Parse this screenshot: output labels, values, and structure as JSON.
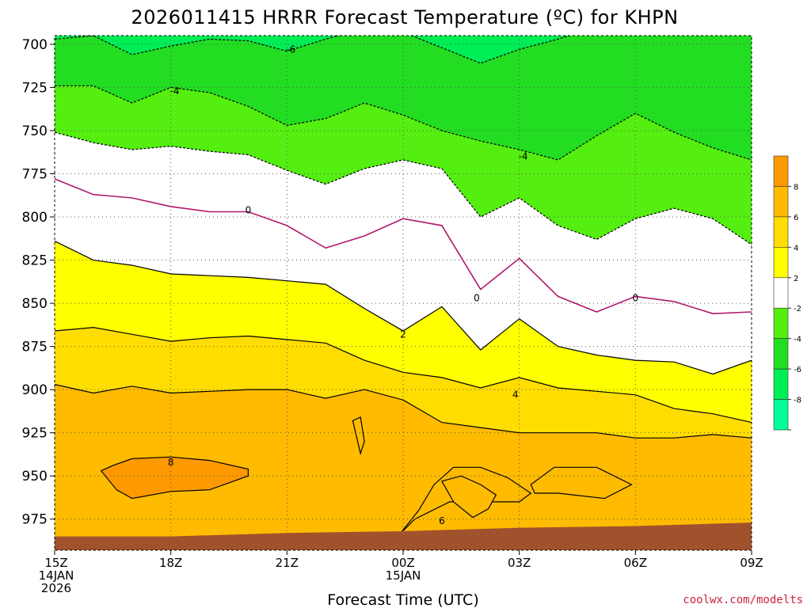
{
  "chart_data": {
    "type": "heatmap",
    "title": "2026011415 HRRR Forecast Temperature (ºC) for KHPN",
    "xlabel": "Forecast Time (UTC)",
    "ylabel": "",
    "credit": "coolwx.com/modelts",
    "x_unit": "forecast hours from 2026-01-14 15Z",
    "y_unit": "hPa",
    "xlim": [
      0,
      18
    ],
    "ylim": [
      695,
      993
    ],
    "y_inverted": true,
    "grid": true,
    "x_ticks": [
      {
        "hour": 0,
        "lines": [
          "15Z",
          "14JAN",
          "2026"
        ]
      },
      {
        "hour": 3,
        "lines": [
          "18Z"
        ]
      },
      {
        "hour": 6,
        "lines": [
          "21Z"
        ]
      },
      {
        "hour": 9,
        "lines": [
          "00Z",
          "15JAN"
        ]
      },
      {
        "hour": 12,
        "lines": [
          "03Z"
        ]
      },
      {
        "hour": 15,
        "lines": [
          "06Z"
        ]
      },
      {
        "hour": 18,
        "lines": [
          "09Z"
        ]
      }
    ],
    "y_ticks": [
      700,
      725,
      750,
      775,
      800,
      825,
      850,
      875,
      900,
      925,
      950,
      975
    ],
    "colorbar": {
      "placement": "right",
      "bins": [
        {
          "range": [
            -10,
            -8
          ],
          "color": "#00ff99",
          "label": "-8"
        },
        {
          "range": [
            -8,
            -6
          ],
          "color": "#00ee55",
          "label": "-6"
        },
        {
          "range": [
            -6,
            -4
          ],
          "color": "#22dd22",
          "label": "-4"
        },
        {
          "range": [
            -4,
            -2
          ],
          "color": "#55ee11",
          "label": "-2"
        },
        {
          "range": [
            -2,
            2
          ],
          "color": "#ffffff",
          "label": "2"
        },
        {
          "range": [
            2,
            4
          ],
          "color": "#ffff00",
          "label": "4"
        },
        {
          "range": [
            4,
            6
          ],
          "color": "#ffdd00",
          "label": "6"
        },
        {
          "range": [
            6,
            8
          ],
          "color": "#ffbb00",
          "label": "8"
        },
        {
          "range": [
            8,
            10
          ],
          "color": "#ff9900",
          "label": ""
        }
      ]
    },
    "ground": {
      "color": "#a0522d",
      "hour": [
        0,
        3,
        6,
        9,
        12,
        15,
        18
      ],
      "pressure": [
        985,
        985,
        983,
        982,
        980,
        979,
        977
      ]
    },
    "isotherms": [
      {
        "value": -6,
        "labels": [
          {
            "hour": 6.1,
            "pressure": 703
          }
        ],
        "hour": [
          0,
          1,
          2,
          3,
          4,
          5,
          6,
          7,
          8,
          9,
          10,
          11,
          12,
          13,
          14,
          15,
          16,
          17,
          18
        ],
        "pressure": [
          697,
          695,
          706,
          701,
          697,
          698,
          704,
          697,
          691,
          693,
          702,
          711,
          703,
          697,
          690,
          688,
          690,
          693,
          695
        ]
      },
      {
        "value": -4,
        "labels": [
          {
            "hour": 3.1,
            "pressure": 727
          },
          {
            "hour": 12.1,
            "pressure": 765
          }
        ],
        "hour": [
          0,
          1,
          2,
          3,
          4,
          5,
          6,
          7,
          8,
          9,
          10,
          11,
          12,
          13,
          14,
          15,
          16,
          17,
          18
        ],
        "pressure": [
          724,
          724,
          734,
          725,
          728,
          736,
          747,
          743,
          734,
          741,
          750,
          756,
          761,
          767,
          753,
          740,
          751,
          760,
          767
        ]
      },
      {
        "value": -2,
        "labels": [],
        "hour": [
          0,
          1,
          2,
          3,
          4,
          5,
          6,
          7,
          8,
          9,
          10,
          11,
          12,
          13,
          14,
          15,
          16,
          17,
          18
        ],
        "pressure": [
          751,
          757,
          761,
          759,
          762,
          764,
          773,
          781,
          772,
          767,
          772,
          800,
          789,
          805,
          813,
          801,
          795,
          801,
          816
        ]
      },
      {
        "value": 0,
        "labels": [
          {
            "hour": 5,
            "pressure": 796
          },
          {
            "hour": 10.9,
            "pressure": 847
          },
          {
            "hour": 15,
            "pressure": 847
          }
        ],
        "hour": [
          0,
          1,
          2,
          3,
          4,
          5,
          6,
          7,
          8,
          9,
          10,
          11,
          12,
          13,
          14,
          15,
          16,
          17,
          18
        ],
        "pressure": [
          778,
          787,
          789,
          794,
          797,
          797,
          805,
          818,
          811,
          801,
          805,
          842,
          824,
          846,
          855,
          846,
          849,
          856,
          855
        ]
      },
      {
        "value": 2,
        "labels": [
          {
            "hour": 9,
            "pressure": 868
          }
        ],
        "hour": [
          0,
          1,
          2,
          3,
          4,
          5,
          6,
          7,
          8,
          9,
          10,
          11,
          12,
          13,
          14,
          15,
          16,
          17,
          18
        ],
        "pressure": [
          814,
          825,
          828,
          833,
          834,
          835,
          837,
          839,
          853,
          866,
          852,
          877,
          859,
          875,
          880,
          883,
          884,
          891,
          883
        ]
      },
      {
        "value": 4,
        "labels": [
          {
            "hour": 11.9,
            "pressure": 903
          }
        ],
        "hour": [
          0,
          1,
          2,
          3,
          4,
          5,
          6,
          7,
          8,
          9,
          10,
          11,
          12,
          13,
          14,
          15,
          16,
          17,
          18
        ],
        "pressure": [
          866,
          864,
          868,
          872,
          870,
          869,
          871,
          873,
          883,
          890,
          893,
          899,
          893,
          899,
          901,
          903,
          911,
          914,
          919
        ]
      },
      {
        "value": 6,
        "labels": [
          {
            "hour": 10,
            "pressure": 976
          }
        ],
        "hour": [
          0,
          1,
          2,
          3,
          4,
          5,
          6,
          7,
          8,
          9,
          10,
          11,
          12,
          13,
          14,
          15,
          16,
          17,
          18
        ],
        "pressure": [
          897,
          902,
          898,
          902,
          901,
          900,
          900,
          905,
          900,
          906,
          919,
          922,
          925,
          925,
          925,
          928,
          928,
          926,
          928
        ]
      },
      {
        "value": 8,
        "labels": [
          {
            "hour": 3,
            "pressure": 942
          }
        ],
        "hour": [
          1.2,
          1.5,
          2,
          3,
          4,
          5,
          5,
          4,
          3,
          2,
          1.6,
          1.2
        ],
        "pressure": [
          947,
          944,
          940,
          939,
          941,
          946,
          950,
          958,
          959,
          963,
          958,
          947
        ]
      }
    ],
    "warm_pockets_6C": [
      {
        "hour": [
          8.9,
          9.3,
          10.2,
          11.2,
          12,
          12.3,
          11.7,
          11,
          10.3,
          9.8,
          9.4,
          8.9
        ],
        "pressure": [
          984,
          975,
          965,
          965,
          965,
          960,
          951,
          945,
          945,
          955,
          970,
          984
        ]
      },
      {
        "hour": [
          12.3,
          12.9,
          14,
          14.9,
          14.2,
          13,
          12.4,
          12.3
        ],
        "pressure": [
          955,
          945,
          945,
          955,
          963,
          960,
          960,
          955
        ]
      },
      {
        "hour": [
          7.7,
          7.9,
          8,
          7.9,
          7.7
        ],
        "pressure": [
          918,
          916,
          930,
          937,
          918
        ]
      },
      {
        "hour": [
          10,
          10.5,
          11,
          11.4,
          11.2,
          10.8,
          10.3,
          10
        ],
        "pressure": [
          953,
          950,
          955,
          961,
          969,
          974,
          965,
          953
        ]
      }
    ]
  }
}
